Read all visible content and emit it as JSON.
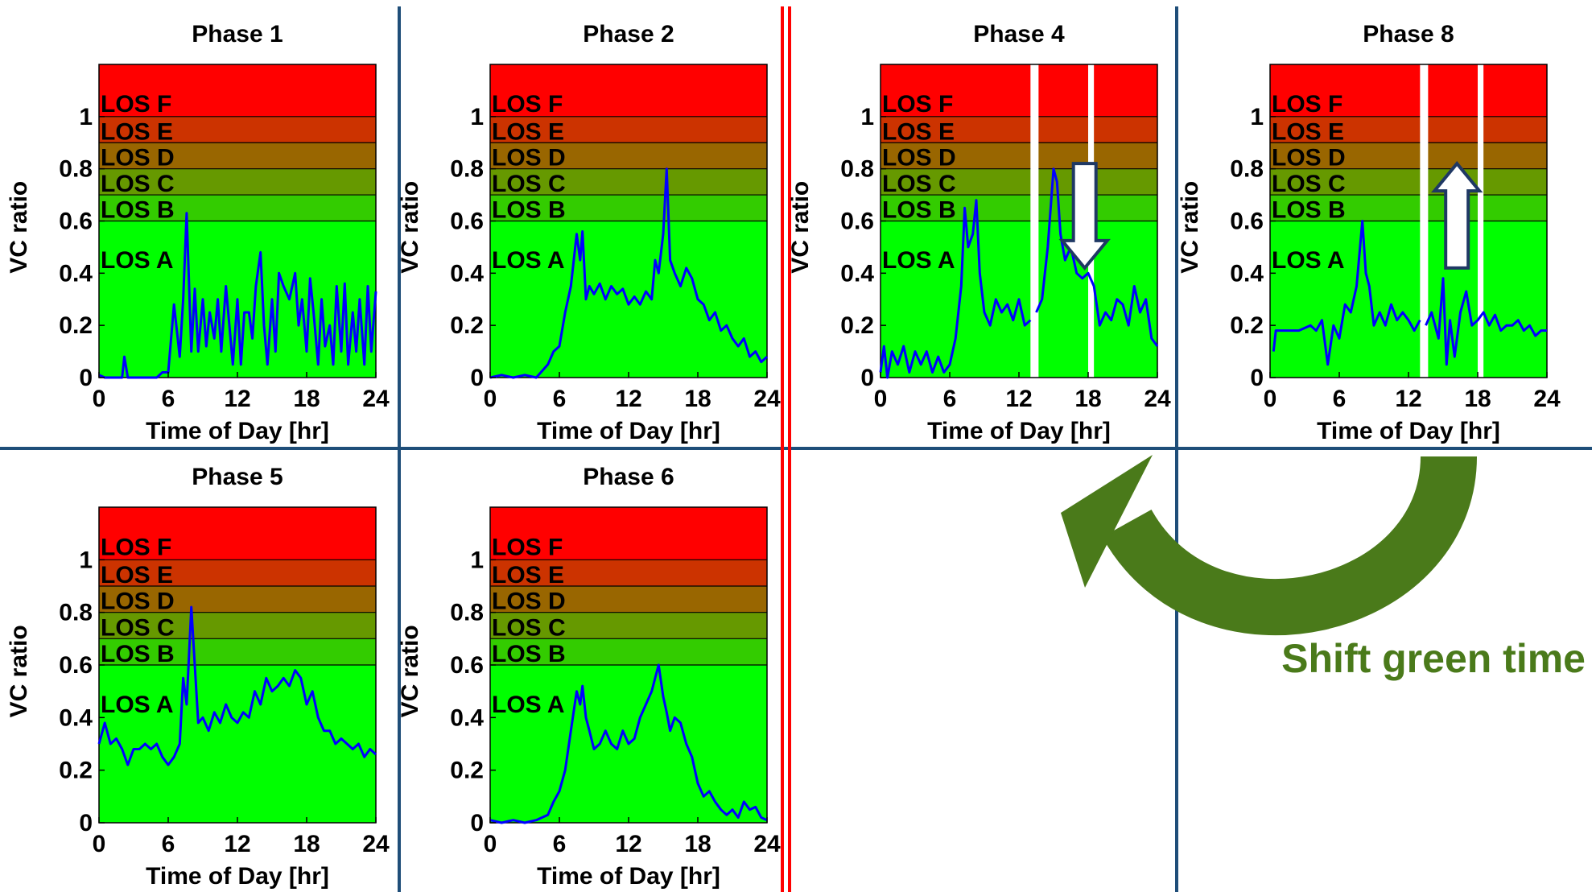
{
  "colors": {
    "los_f": "#ff0000",
    "los_e": "#cc3300",
    "los_d": "#996600",
    "los_c": "#669900",
    "los_b": "#33cc00",
    "los_a": "#00ff00",
    "line": "#0000ff",
    "divider": "#1f4e79",
    "red_divider": "#ff0000",
    "shift_arrow": "#4a7a1a",
    "down_arrow_outline": "#1f3864"
  },
  "axes": {
    "ylabel": "VC ratio",
    "xlabel": "Time of Day [hr]",
    "xticks": [
      "0",
      "6",
      "12",
      "18",
      "24"
    ],
    "yticks": [
      "0",
      "0.2",
      "0.4",
      "0.6",
      "0.8",
      "1"
    ],
    "xlim": [
      0,
      24
    ],
    "ylim": [
      0,
      1.2
    ]
  },
  "los_bands": [
    {
      "label": "LOS A",
      "from": 0,
      "to": 0.6,
      "color": "#00ff00"
    },
    {
      "label": "LOS B",
      "from": 0.6,
      "to": 0.7,
      "color": "#33cc00"
    },
    {
      "label": "LOS C",
      "from": 0.7,
      "to": 0.8,
      "color": "#669900"
    },
    {
      "label": "LOS D",
      "from": 0.8,
      "to": 0.9,
      "color": "#996600"
    },
    {
      "label": "LOS E",
      "from": 0.9,
      "to": 1.0,
      "color": "#cc3300"
    },
    {
      "label": "LOS F",
      "from": 1.0,
      "to": 1.2,
      "color": "#ff0000"
    }
  ],
  "annotation": {
    "shift_label": "Shift green time"
  },
  "chart_data": [
    {
      "type": "line",
      "title": "Phase 1",
      "x": [
        0,
        0.5,
        1,
        1.5,
        2,
        2.2,
        2.5,
        3,
        3.5,
        4,
        4.5,
        5,
        5.5,
        6,
        6.5,
        7,
        7.3,
        7.6,
        8,
        8.3,
        8.6,
        9,
        9.3,
        9.6,
        10,
        10.3,
        10.6,
        11,
        11.3,
        11.6,
        12,
        12.3,
        12.6,
        13,
        13.3,
        13.6,
        14,
        14.3,
        14.6,
        15,
        15.3,
        15.6,
        16,
        16.5,
        17,
        17.3,
        17.6,
        18,
        18.3,
        18.6,
        19,
        19.3,
        19.6,
        20,
        20.3,
        20.6,
        21,
        21.3,
        21.6,
        22,
        22.3,
        22.6,
        23,
        23.3,
        23.6,
        24
      ],
      "y": [
        0.01,
        0,
        0,
        0,
        0,
        0.08,
        0,
        0,
        0,
        0,
        0,
        0,
        0.02,
        0.02,
        0.28,
        0.08,
        0.3,
        0.63,
        0.1,
        0.34,
        0.1,
        0.3,
        0.12,
        0.25,
        0.15,
        0.3,
        0.1,
        0.35,
        0.2,
        0.05,
        0.3,
        0.05,
        0.25,
        0.25,
        0.15,
        0.35,
        0.48,
        0.2,
        0.05,
        0.3,
        0.1,
        0.4,
        0.35,
        0.3,
        0.4,
        0.2,
        0.3,
        0.1,
        0.38,
        0.25,
        0.05,
        0.3,
        0.12,
        0.2,
        0.05,
        0.35,
        0.1,
        0.36,
        0.05,
        0.25,
        0.1,
        0.3,
        0.05,
        0.35,
        0.1,
        0.33
      ],
      "xlim": [
        0,
        24
      ],
      "ylim": [
        0,
        1.2
      ]
    },
    {
      "type": "line",
      "title": "Phase 2",
      "x": [
        0,
        1,
        2,
        3,
        4,
        5,
        5.5,
        6,
        6.5,
        7,
        7.5,
        7.8,
        8,
        8.3,
        8.6,
        9,
        9.5,
        10,
        10.5,
        11,
        11.5,
        12,
        12.5,
        13,
        13.5,
        14,
        14.3,
        14.6,
        15,
        15.3,
        15.6,
        16,
        16.5,
        17,
        17.5,
        18,
        18.5,
        19,
        19.5,
        20,
        20.5,
        21,
        21.5,
        22,
        22.5,
        23,
        23.5,
        24
      ],
      "y": [
        0,
        0.01,
        0,
        0.01,
        0,
        0.05,
        0.1,
        0.12,
        0.25,
        0.35,
        0.55,
        0.45,
        0.56,
        0.3,
        0.35,
        0.32,
        0.36,
        0.3,
        0.35,
        0.32,
        0.34,
        0.28,
        0.31,
        0.28,
        0.33,
        0.3,
        0.45,
        0.4,
        0.55,
        0.8,
        0.45,
        0.4,
        0.35,
        0.42,
        0.38,
        0.3,
        0.28,
        0.22,
        0.25,
        0.18,
        0.2,
        0.15,
        0.12,
        0.15,
        0.08,
        0.1,
        0.06,
        0.08
      ],
      "xlim": [
        0,
        24
      ],
      "ylim": [
        0,
        1.2
      ]
    },
    {
      "type": "line",
      "title": "Phase 4",
      "x": [
        0,
        0.3,
        0.6,
        1,
        1.5,
        2,
        2.5,
        3,
        3.5,
        4,
        4.5,
        5,
        5.5,
        6,
        6.5,
        7,
        7.3,
        7.6,
        8,
        8.3,
        8.6,
        9,
        9.5,
        10,
        10.5,
        11,
        11.5,
        12,
        12.5,
        13,
        13.5,
        14,
        14.5,
        15,
        15.3,
        15.6,
        16,
        16.5,
        17,
        17.5,
        18,
        18.5,
        19,
        19.5,
        20,
        20.5,
        21,
        21.5,
        22,
        22.5,
        23,
        23.5,
        24
      ],
      "y": [
        0.02,
        0.12,
        0,
        0.1,
        0.05,
        0.12,
        0.02,
        0.1,
        0.05,
        0.1,
        0.02,
        0.08,
        0.02,
        0.05,
        0.15,
        0.35,
        0.65,
        0.5,
        0.55,
        0.68,
        0.4,
        0.25,
        0.2,
        0.3,
        0.25,
        0.28,
        0.22,
        0.3,
        0.2,
        0.22,
        0.25,
        0.3,
        0.5,
        0.8,
        0.75,
        0.55,
        0.45,
        0.5,
        0.4,
        0.38,
        0.4,
        0.35,
        0.2,
        0.25,
        0.22,
        0.3,
        0.28,
        0.2,
        0.35,
        0.25,
        0.3,
        0.15,
        0.12
      ],
      "gaps": [
        [
          13,
          13.7
        ],
        [
          18,
          18.5
        ]
      ],
      "annotation": {
        "arrow": "down",
        "x": 17.7,
        "y_from": 0.82,
        "y_to": 0.42
      },
      "xlim": [
        0,
        24
      ],
      "ylim": [
        0,
        1.2
      ]
    },
    {
      "type": "line",
      "title": "Phase 8",
      "x": [
        0.3,
        0.5,
        1.5,
        2.5,
        3.5,
        4,
        4.5,
        5,
        5.5,
        6,
        6.5,
        7,
        7.5,
        8,
        8.3,
        8.6,
        9,
        9.5,
        10,
        10.5,
        11,
        11.5,
        12,
        12.5,
        13,
        13.5,
        14,
        14.3,
        14.6,
        15,
        15.3,
        15.6,
        16,
        16.5,
        17,
        17.5,
        18,
        18.5,
        19,
        19.5,
        20,
        20.5,
        21,
        21.5,
        22,
        22.5,
        23,
        23.5,
        24
      ],
      "y": [
        0.1,
        0.18,
        0.18,
        0.18,
        0.2,
        0.18,
        0.22,
        0.05,
        0.2,
        0.15,
        0.28,
        0.25,
        0.35,
        0.6,
        0.4,
        0.35,
        0.2,
        0.25,
        0.2,
        0.28,
        0.22,
        0.25,
        0.22,
        0.18,
        0.22,
        0.2,
        0.25,
        0.2,
        0.15,
        0.38,
        0.05,
        0.22,
        0.08,
        0.25,
        0.33,
        0.2,
        0.22,
        0.25,
        0.2,
        0.24,
        0.18,
        0.2,
        0.2,
        0.22,
        0.18,
        0.2,
        0.16,
        0.18,
        0.18
      ],
      "gaps": [
        [
          13,
          13.7
        ],
        [
          18,
          18.5
        ]
      ],
      "annotation": {
        "arrow": "up",
        "x": 16.2,
        "y_from": 0.42,
        "y_to": 0.82
      },
      "xlim": [
        0,
        24
      ],
      "ylim": [
        0,
        1.2
      ]
    },
    {
      "type": "line",
      "title": "Phase 5",
      "x": [
        0,
        0.5,
        1,
        1.5,
        2,
        2.5,
        3,
        3.5,
        4,
        4.5,
        5,
        5.5,
        6,
        6.5,
        7,
        7.3,
        7.6,
        8,
        8.3,
        8.6,
        9,
        9.5,
        10,
        10.5,
        11,
        11.5,
        12,
        12.5,
        13,
        13.5,
        14,
        14.5,
        15,
        15.5,
        16,
        16.5,
        17,
        17.5,
        18,
        18.5,
        19,
        19.5,
        20,
        20.5,
        21,
        21.5,
        22,
        22.5,
        23,
        23.5,
        24
      ],
      "y": [
        0.3,
        0.38,
        0.3,
        0.32,
        0.28,
        0.22,
        0.28,
        0.28,
        0.3,
        0.28,
        0.3,
        0.25,
        0.22,
        0.25,
        0.3,
        0.55,
        0.45,
        0.82,
        0.6,
        0.38,
        0.4,
        0.35,
        0.42,
        0.38,
        0.45,
        0.4,
        0.38,
        0.42,
        0.4,
        0.5,
        0.45,
        0.55,
        0.5,
        0.52,
        0.55,
        0.52,
        0.58,
        0.55,
        0.45,
        0.5,
        0.4,
        0.35,
        0.35,
        0.3,
        0.32,
        0.3,
        0.28,
        0.3,
        0.25,
        0.28,
        0.26
      ],
      "xlim": [
        0,
        24
      ],
      "ylim": [
        0,
        1.2
      ]
    },
    {
      "type": "line",
      "title": "Phase 6",
      "x": [
        0,
        1,
        2,
        3,
        4,
        5,
        5.5,
        6,
        6.5,
        7,
        7.5,
        7.8,
        8,
        8.3,
        8.6,
        9,
        9.5,
        10,
        10.5,
        11,
        11.5,
        12,
        12.5,
        13,
        13.5,
        14,
        14.3,
        14.6,
        15,
        15.3,
        15.6,
        16,
        16.5,
        17,
        17.5,
        18,
        18.5,
        19,
        19.5,
        20,
        20.5,
        21,
        21.5,
        22,
        22.5,
        23,
        23.5,
        24
      ],
      "y": [
        0.01,
        0,
        0.01,
        0,
        0.01,
        0.03,
        0.08,
        0.12,
        0.2,
        0.35,
        0.5,
        0.45,
        0.52,
        0.4,
        0.35,
        0.28,
        0.3,
        0.35,
        0.3,
        0.28,
        0.35,
        0.3,
        0.32,
        0.4,
        0.45,
        0.5,
        0.55,
        0.6,
        0.48,
        0.42,
        0.35,
        0.4,
        0.38,
        0.3,
        0.25,
        0.15,
        0.1,
        0.12,
        0.08,
        0.05,
        0.03,
        0.05,
        0.02,
        0.08,
        0.05,
        0.06,
        0.02,
        0.01
      ],
      "xlim": [
        0,
        24
      ],
      "ylim": [
        0,
        1.2
      ]
    }
  ]
}
